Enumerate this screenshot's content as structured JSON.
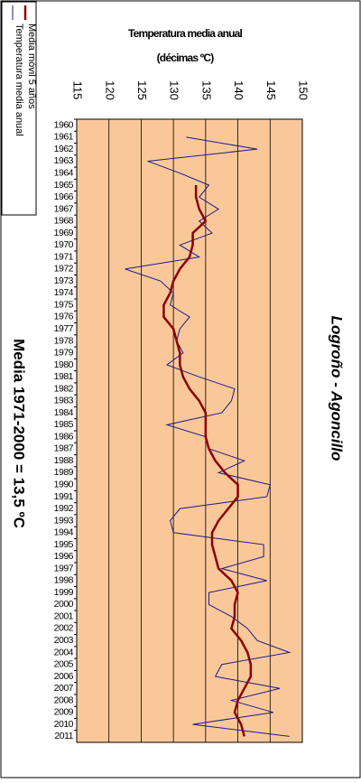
{
  "chart_data": {
    "type": "line",
    "title": "Temperatura media anual",
    "subtitle": "(décimas ºC)",
    "station": "Logroño - Agoncillo",
    "annotation": "Media 1971-2000 = 13,5 ºC",
    "categories": [
      "1960",
      "1961",
      "1962",
      "1963",
      "1964",
      "1965",
      "1966",
      "1967",
      "1968",
      "1969",
      "1970",
      "1971",
      "1972",
      "1973",
      "1974",
      "1975",
      "1976",
      "1977",
      "1978",
      "1979",
      "1980",
      "1981",
      "1982",
      "1983",
      "1984",
      "1985",
      "1986",
      "1987",
      "1988",
      "1989",
      "1990",
      "1991",
      "1992",
      "1993",
      "1994",
      "1995",
      "1996",
      "1997",
      "1998",
      "1999",
      "2000",
      "2001",
      "2002",
      "2003",
      "2004",
      "2005",
      "2006",
      "2007",
      "2008",
      "2009",
      "2010",
      "2011"
    ],
    "series": [
      {
        "name": "Temperatura media anual",
        "color": "#1a1a8c",
        "values": [
          null,
          132,
          143,
          126,
          131,
          135.5,
          134,
          137,
          134,
          136,
          131,
          134,
          122.5,
          128,
          130,
          129.5,
          132.5,
          131,
          130.5,
          131.5,
          129,
          134,
          139.5,
          139,
          137.5,
          129,
          135,
          135.5,
          141,
          137,
          145,
          144.5,
          131,
          129.5,
          130,
          144,
          144,
          137.5,
          144.5,
          135.5,
          135.5,
          139,
          141.5,
          143,
          148,
          137.5,
          136.5,
          146.5,
          139,
          145.5,
          133,
          148
        ]
      },
      {
        "name": "Media móvil 5 años",
        "color": "#8b0000",
        "values": [
          null,
          null,
          null,
          null,
          null,
          133.5,
          133.5,
          134,
          135,
          133,
          133,
          132.5,
          131,
          130,
          129.5,
          128.5,
          128.5,
          130,
          130.5,
          131,
          131,
          131.5,
          132.5,
          134,
          135,
          135,
          135,
          135.5,
          136.5,
          138,
          140,
          140,
          138.5,
          137,
          136,
          136,
          136.5,
          137,
          139,
          140,
          139.5,
          139.5,
          139,
          140.5,
          141.5,
          142,
          142,
          141,
          140,
          139.5,
          140.5,
          141
        ]
      }
    ],
    "xlim": [
      115,
      150
    ],
    "xticks": [
      115,
      120,
      125,
      130,
      135,
      140,
      145,
      150
    ],
    "grid": true,
    "plot_color": "#fac898"
  }
}
